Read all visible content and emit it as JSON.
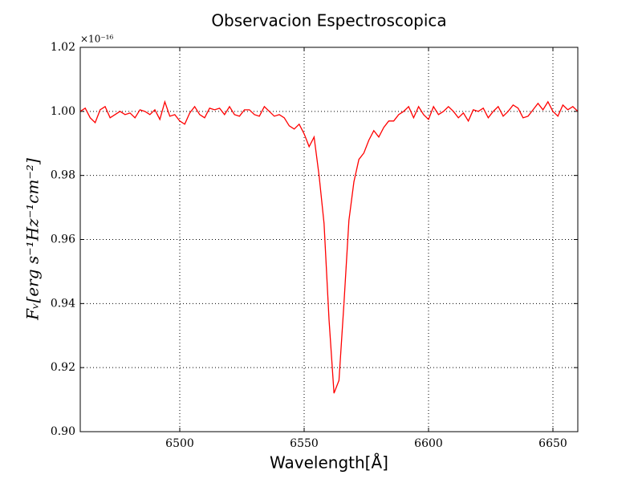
{
  "chart_data": {
    "type": "line",
    "title": "Observacion Espectroscopica",
    "xlabel": "Wavelength[Å]",
    "ylabel": "Fᵥ[erg s⁻¹Hz⁻¹cm⁻²]",
    "y_offset_label": "×10⁻¹⁶",
    "x": [
      6460,
      6462,
      6464,
      6466,
      6468,
      6470,
      6472,
      6474,
      6476,
      6478,
      6480,
      6482,
      6484,
      6486,
      6488,
      6490,
      6492,
      6494,
      6496,
      6498,
      6500,
      6502,
      6504,
      6506,
      6508,
      6510,
      6512,
      6514,
      6516,
      6518,
      6520,
      6522,
      6524,
      6526,
      6528,
      6530,
      6532,
      6534,
      6536,
      6538,
      6540,
      6542,
      6544,
      6546,
      6548,
      6550,
      6552,
      6554,
      6556,
      6558,
      6560,
      6562,
      6564,
      6566,
      6568,
      6570,
      6572,
      6574,
      6576,
      6578,
      6580,
      6582,
      6584,
      6586,
      6588,
      6590,
      6592,
      6594,
      6596,
      6598,
      6600,
      6602,
      6604,
      6606,
      6608,
      6610,
      6612,
      6614,
      6616,
      6618,
      6620,
      6622,
      6624,
      6626,
      6628,
      6630,
      6632,
      6634,
      6636,
      6638,
      6640,
      6642,
      6644,
      6646,
      6648,
      6650,
      6652,
      6654,
      6656,
      6658,
      6660
    ],
    "series": [
      {
        "color": "#ff0000",
        "values": [
          1.0,
          1.001,
          0.998,
          0.9965,
          1.0005,
          1.0015,
          0.998,
          0.999,
          1.0,
          0.999,
          0.9995,
          0.998,
          1.0005,
          1.0,
          0.999,
          1.0005,
          0.9975,
          1.003,
          0.9985,
          0.999,
          0.997,
          0.996,
          0.9995,
          1.0015,
          0.999,
          0.998,
          1.001,
          1.0005,
          1.001,
          0.999,
          1.0015,
          0.999,
          0.9985,
          1.0005,
          1.0005,
          0.999,
          0.9985,
          1.0015,
          1.0,
          0.9985,
          0.999,
          0.998,
          0.9955,
          0.9945,
          0.996,
          0.993,
          0.989,
          0.992,
          0.98,
          0.965,
          0.935,
          0.912,
          0.916,
          0.94,
          0.966,
          0.978,
          0.985,
          0.987,
          0.991,
          0.994,
          0.992,
          0.995,
          0.997,
          0.997,
          0.999,
          1.0,
          1.0015,
          0.998,
          1.0015,
          0.999,
          0.9975,
          1.0015,
          0.999,
          1.0,
          1.0015,
          1.0,
          0.998,
          0.9995,
          0.997,
          1.0005,
          1.0,
          1.001,
          0.998,
          1.0,
          1.0015,
          0.9985,
          1.0,
          1.002,
          1.001,
          0.998,
          0.9985,
          1.0005,
          1.0025,
          1.0005,
          1.003,
          1.0,
          0.9985,
          1.002,
          1.0005,
          1.0015,
          1.0
        ]
      }
    ],
    "xlim": [
      6460,
      6660
    ],
    "xticks": [
      6500,
      6550,
      6600,
      6650
    ],
    "ylim": [
      0.9,
      1.02
    ],
    "yticks": [
      {
        "value": 0.9,
        "label": "0.90"
      },
      0.92,
      0.94,
      0.96,
      0.98,
      {
        "value": 1,
        "label": "1.00"
      },
      1.02
    ],
    "grid": true
  }
}
